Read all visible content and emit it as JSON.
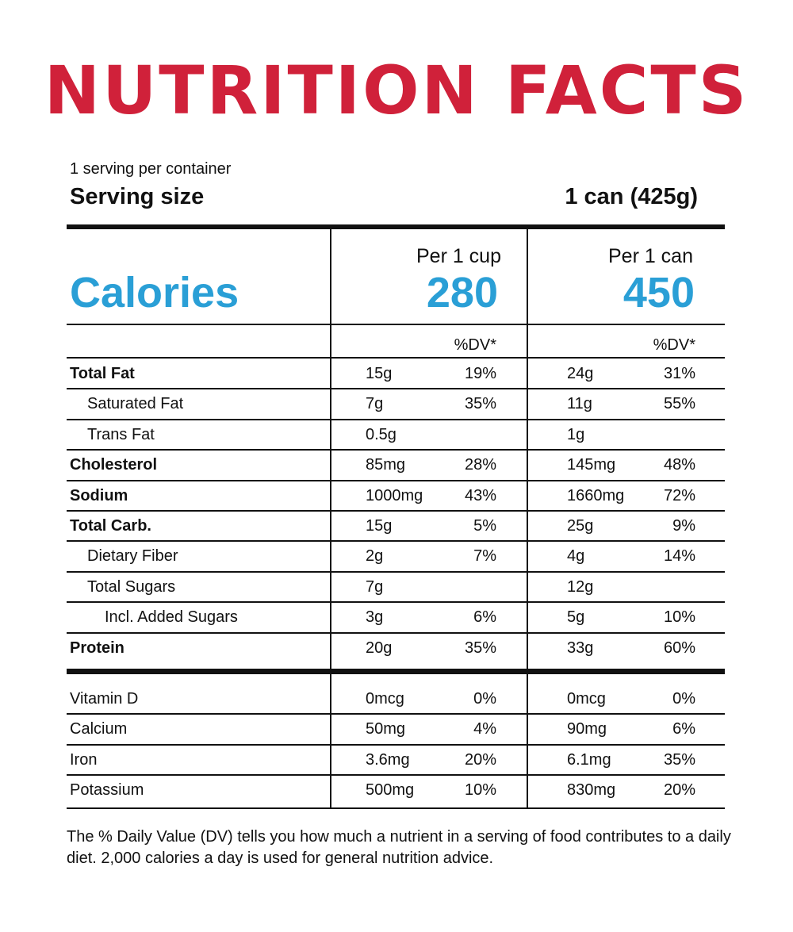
{
  "title": "NUTRITION FACTS",
  "servings_per_container": "1 serving per container",
  "serving_size_label": "Serving size",
  "serving_size_value": "1 can (425g)",
  "calories_label": "Calories",
  "columns": [
    {
      "header": "Per 1 cup",
      "calories": "280",
      "dv_header": "%DV*"
    },
    {
      "header": "Per 1 can",
      "calories": "450",
      "dv_header": "%DV*"
    }
  ],
  "nutrients": [
    {
      "name": "Total Fat",
      "style": "bold",
      "cup_amount": "15g",
      "cup_dv": "19%",
      "can_amount": "24g",
      "can_dv": "31%"
    },
    {
      "name": "Saturated Fat",
      "style": "indent1",
      "cup_amount": "7g",
      "cup_dv": "35%",
      "can_amount": "11g",
      "can_dv": "55%"
    },
    {
      "name": "Trans Fat",
      "style": "indent1",
      "cup_amount": "0.5g",
      "cup_dv": "",
      "can_amount": "1g",
      "can_dv": ""
    },
    {
      "name": "Cholesterol",
      "style": "bold",
      "cup_amount": "85mg",
      "cup_dv": "28%",
      "can_amount": "145mg",
      "can_dv": "48%"
    },
    {
      "name": "Sodium",
      "style": "bold",
      "cup_amount": "1000mg",
      "cup_dv": "43%",
      "can_amount": "1660mg",
      "can_dv": "72%"
    },
    {
      "name": "Total Carb.",
      "style": "bold",
      "cup_amount": "15g",
      "cup_dv": "5%",
      "can_amount": "25g",
      "can_dv": "9%"
    },
    {
      "name": "Dietary Fiber",
      "style": "indent1",
      "cup_amount": "2g",
      "cup_dv": "7%",
      "can_amount": "4g",
      "can_dv": "14%"
    },
    {
      "name": "Total Sugars",
      "style": "indent1",
      "cup_amount": "7g",
      "cup_dv": "",
      "can_amount": "12g",
      "can_dv": ""
    },
    {
      "name": "Incl. Added Sugars",
      "style": "indent2",
      "cup_amount": "3g",
      "cup_dv": "6%",
      "can_amount": "5g",
      "can_dv": "10%"
    },
    {
      "name": "Protein",
      "style": "bold",
      "cup_amount": "20g",
      "cup_dv": "35%",
      "can_amount": "33g",
      "can_dv": "60%"
    }
  ],
  "vitamins": [
    {
      "name": "Vitamin D",
      "cup_amount": "0mcg",
      "cup_dv": "0%",
      "can_amount": "0mcg",
      "can_dv": "0%"
    },
    {
      "name": "Calcium",
      "cup_amount": "50mg",
      "cup_dv": "4%",
      "can_amount": "90mg",
      "can_dv": "6%"
    },
    {
      "name": "Iron",
      "cup_amount": "3.6mg",
      "cup_dv": "20%",
      "can_amount": "6.1mg",
      "can_dv": "35%"
    },
    {
      "name": "Potassium",
      "cup_amount": "500mg",
      "cup_dv": "10%",
      "can_amount": "830mg",
      "can_dv": "20%"
    }
  ],
  "footnote": "The % Daily Value (DV) tells you how much a nutrient in a serving of food contributes to a daily diet. 2,000 calories a day is used for general nutrition advice.",
  "colors": {
    "title": "#d0213a",
    "calories": "#2a9fd6",
    "text": "#111111"
  }
}
